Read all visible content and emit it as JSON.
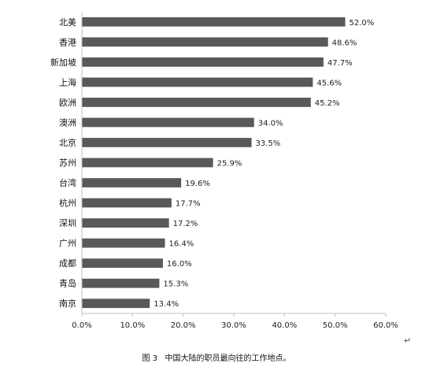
{
  "chart_data": {
    "type": "bar",
    "orientation": "horizontal",
    "categories": [
      "北美",
      "香港",
      "新加坡",
      "上海",
      "欧洲",
      "澳洲",
      "北京",
      "苏州",
      "台湾",
      "杭州",
      "深圳",
      "广州",
      "成都",
      "青岛",
      "南京"
    ],
    "values": [
      52.0,
      48.6,
      47.7,
      45.6,
      45.2,
      34.0,
      33.5,
      25.9,
      19.6,
      17.7,
      17.2,
      16.4,
      16.0,
      15.3,
      13.4
    ],
    "value_labels": [
      "52.0%",
      "48.6%",
      "47.7%",
      "45.6%",
      "45.2%",
      "34.0%",
      "33.5%",
      "25.9%",
      "19.6%",
      "17.7%",
      "17.2%",
      "16.4%",
      "16.0%",
      "15.3%",
      "13.4%"
    ],
    "x_ticks": [
      "0.0%",
      "10.0%",
      "20.0%",
      "30.0%",
      "40.0%",
      "50.0%",
      "60.0%"
    ],
    "xlim": [
      0,
      60
    ],
    "title": "",
    "xlabel": "",
    "ylabel": "",
    "grid": false,
    "legend": "none",
    "bar_color": "#595959",
    "caption": "图 3   中国大陆的职员最向往的工作地点。"
  },
  "return_mark": "↵"
}
